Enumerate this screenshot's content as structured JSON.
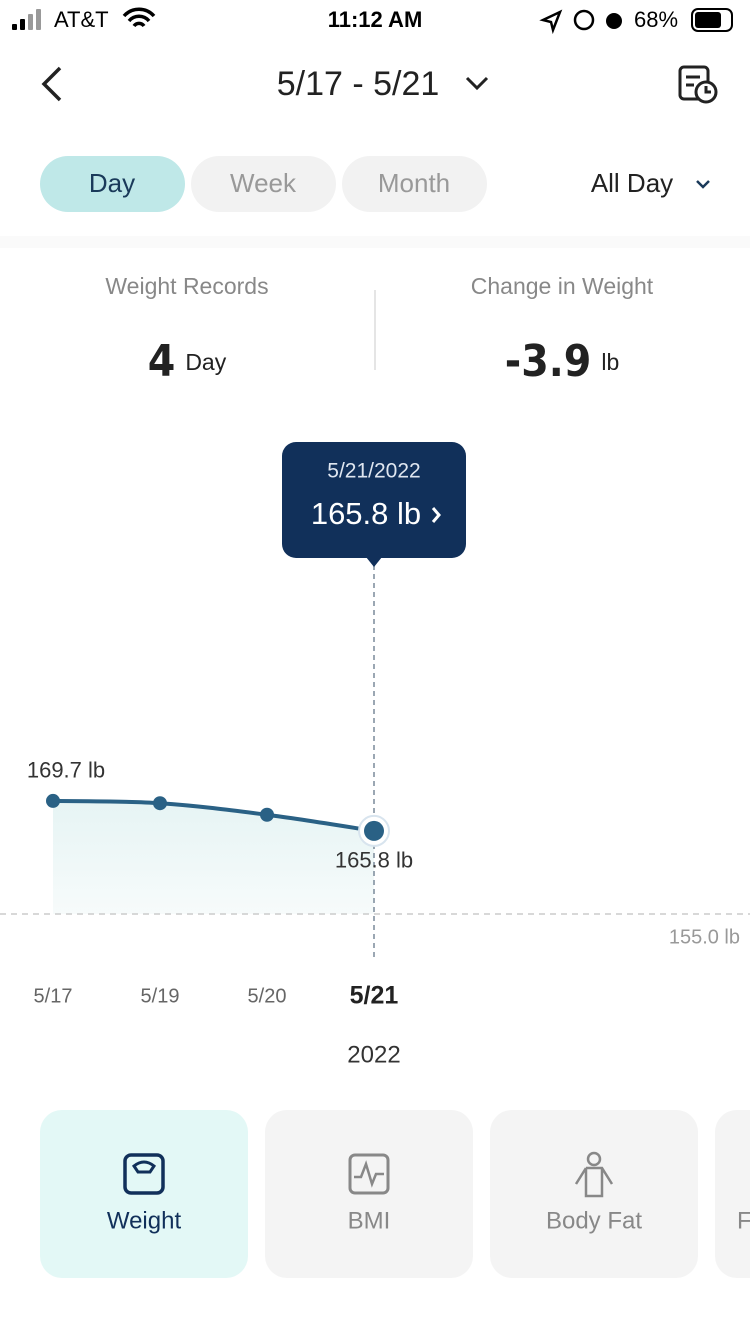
{
  "status_bar": {
    "carrier": "AT&T",
    "time": "11:12 AM",
    "battery": "68%"
  },
  "header": {
    "date_range": "5/17 - 5/21"
  },
  "tabs": {
    "items": [
      "Day",
      "Week",
      "Month"
    ],
    "selected": 0,
    "period": "All Day"
  },
  "stats": [
    {
      "label": "Weight Records",
      "value": "4",
      "unit": "Day"
    },
    {
      "label": "Change in Weight",
      "value": "-3.9",
      "unit": "lb"
    }
  ],
  "chart": {
    "type": "line",
    "categories": [
      "5/17",
      "5/19",
      "5/20",
      "5/21"
    ],
    "values": [
      169.7,
      169.4,
      167.9,
      165.8
    ],
    "value_labels": [
      "169.7 lb",
      null,
      null,
      "165.8 lb"
    ],
    "ylim": [
      155,
      170
    ],
    "reference": {
      "value": 155,
      "label": "155.0 lb"
    },
    "color": "#2a6185",
    "selected": 3,
    "year": "2022",
    "tooltip": {
      "date": "5/21/2022",
      "value": "165.8 lb"
    }
  },
  "cards": [
    "Weight",
    "BMI",
    "Body Fat",
    "F"
  ]
}
